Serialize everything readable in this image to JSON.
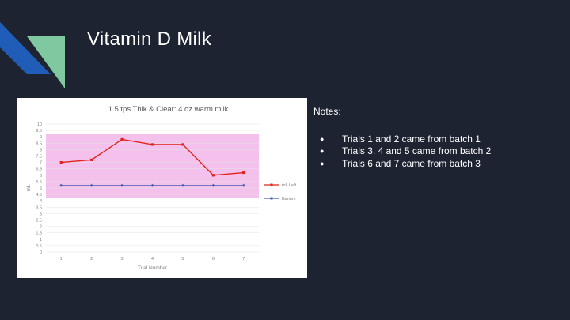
{
  "slide": {
    "title": "Vitamin D Milk",
    "colors": {
      "background": "#1d2331",
      "accent_green": "#7fc8a0",
      "accent_blue": "#1f5db8"
    }
  },
  "notes": {
    "heading": "Notes:",
    "items": [
      "Trials 1 and 2 came from batch 1",
      "Trials 3, 4 and 5 came from batch 2",
      "Trials 6 and 7 came from batch 3"
    ]
  },
  "chart_data": {
    "type": "line",
    "title": "1.5 tps Thik & Clear: 4 oz warm milk",
    "xlabel": "Trial Number",
    "ylabel": "mL",
    "categories": [
      "1",
      "2",
      "3",
      "4",
      "5",
      "6",
      "7"
    ],
    "y_ticks": [
      "0",
      "0.5",
      "1",
      "1.5",
      "2",
      "2.5",
      "3",
      "3.5",
      "4",
      "4.5",
      "5",
      "5.5",
      "6",
      "6.5",
      "7",
      "7.5",
      "8",
      "8.5",
      "9",
      "9.5",
      "10"
    ],
    "ylim": [
      0,
      10
    ],
    "shaded_band": {
      "from": 4.2,
      "to": 9.2,
      "color": "#f2b6ea"
    },
    "grid": true,
    "legend_position": "right",
    "series": [
      {
        "name": "mL Left",
        "color": "#e2231a",
        "values": [
          7.0,
          7.2,
          8.8,
          8.4,
          8.4,
          6.0,
          6.2
        ]
      },
      {
        "name": "Barium",
        "color": "#4a5fb0",
        "values": [
          5.2,
          5.2,
          5.2,
          5.2,
          5.2,
          5.2,
          5.2
        ]
      }
    ]
  }
}
